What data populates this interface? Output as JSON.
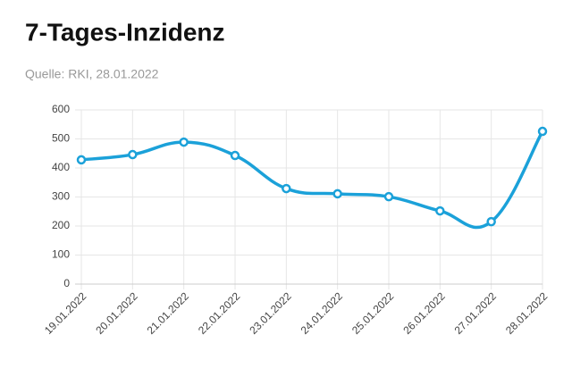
{
  "chart_data": {
    "type": "line",
    "title": "7-Tages-Inzidenz",
    "subtitle": "Quelle: RKI, 28.01.2022",
    "categories": [
      "19.01.2022",
      "20.01.2022",
      "21.01.2022",
      "22.01.2022",
      "23.01.2022",
      "24.01.2022",
      "25.01.2022",
      "26.01.2022",
      "27.01.2022",
      "28.01.2022"
    ],
    "series": [
      {
        "name": "7-Tages-Inzidenz",
        "color": "#1ba1d9",
        "values": [
          428,
          446,
          489,
          443,
          329,
          311,
          301,
          252,
          215,
          526
        ]
      }
    ],
    "ylim": [
      0,
      600
    ],
    "yticks": [
      0,
      100,
      200,
      300,
      400,
      500,
      600
    ],
    "grid": true
  }
}
